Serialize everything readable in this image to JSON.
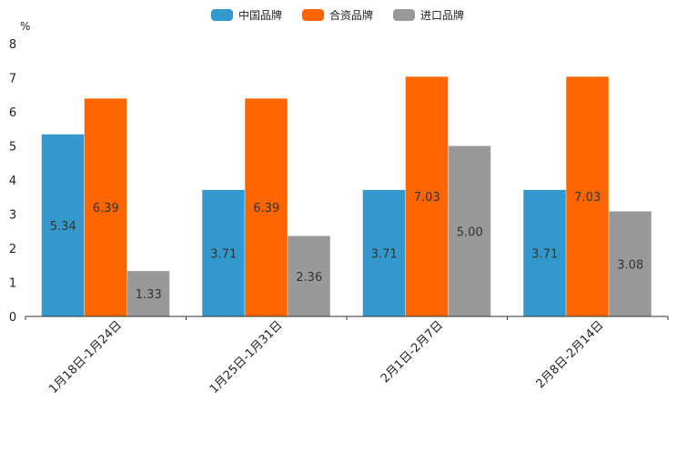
{
  "chart_data": {
    "type": "bar",
    "title": "",
    "ylabel": "%",
    "xlabel": "",
    "ylim": [
      0,
      8
    ],
    "yticks": [
      0,
      1,
      2,
      3,
      4,
      5,
      6,
      7,
      8
    ],
    "categories": [
      "1月18日-1月24日",
      "1月25日-1月31日",
      "2月1日-2月7日",
      "2月8日-2月14日"
    ],
    "series": [
      {
        "name": "中国品牌",
        "color": "#3399cc",
        "values": [
          5.34,
          3.71,
          3.71,
          3.71
        ],
        "labels": [
          "5.34",
          "3.71",
          "3.71",
          "3.71"
        ]
      },
      {
        "name": "合资品牌",
        "color": "#ff6600",
        "values": [
          6.39,
          6.39,
          7.03,
          7.03
        ],
        "labels": [
          "6.39",
          "6.39",
          "7.03",
          "7.03"
        ]
      },
      {
        "name": "进口品牌",
        "color": "#999999",
        "values": [
          1.33,
          2.36,
          5.0,
          3.08
        ],
        "labels": [
          "1.33",
          "2.36",
          "5.00",
          "3.08"
        ]
      }
    ],
    "legend_position": "top-center",
    "grid": false
  }
}
